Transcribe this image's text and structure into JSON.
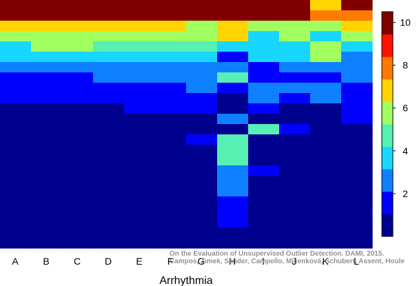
{
  "chart_data": {
    "type": "heatmap",
    "title": "",
    "xlabel": "Arrhythmia",
    "ylabel": "",
    "x_categories": [
      "A",
      "B",
      "C",
      "D",
      "E",
      "F",
      "G",
      "H",
      "I",
      "J",
      "K",
      "L"
    ],
    "rows": 24,
    "color_range": [
      0,
      10.5
    ],
    "colorbar_ticks": [
      2,
      4,
      6,
      8,
      10
    ],
    "colormap": [
      "#00008f",
      "#0000ff",
      "#0f80ff",
      "#17d7ff",
      "#55f0b2",
      "#a0ff5f",
      "#ffd400",
      "#ff7a00",
      "#ff1200",
      "#800000"
    ],
    "matrix": [
      [
        10.5,
        10.5,
        10.5,
        10.5,
        10.5,
        10.5,
        10.5,
        10.5,
        10.5,
        10.5,
        7.1,
        10.5
      ],
      [
        10.5,
        10.5,
        9.5,
        10.5,
        10.5,
        10.5,
        9.5,
        10.5,
        10.5,
        10.5,
        8.3,
        8.3
      ],
      [
        7.1,
        7.1,
        7.1,
        7.1,
        7.1,
        7.1,
        6.1,
        7.1,
        6.1,
        6.1,
        5.5,
        7.1
      ],
      [
        5.3,
        6.1,
        6.1,
        6.1,
        6.1,
        6.1,
        5.3,
        7.1,
        3.9,
        6.1,
        3.9,
        6.1
      ],
      [
        3.9,
        5.3,
        5.3,
        4.5,
        4.5,
        4.5,
        4.5,
        3.5,
        3.5,
        3.5,
        6.1,
        3.9
      ],
      [
        3.5,
        3.5,
        3.5,
        3.5,
        3.5,
        3.5,
        3.9,
        1.4,
        3.5,
        3.5,
        6.1,
        3.1
      ],
      [
        3.1,
        3.1,
        3.1,
        3.1,
        3.1,
        3.1,
        3.1,
        3.1,
        1.4,
        3.1,
        3.1,
        3.1
      ],
      [
        1.4,
        1.4,
        1.4,
        2.9,
        2.9,
        2.9,
        2.9,
        4.5,
        1.4,
        1.4,
        1.4,
        2.9
      ],
      [
        1.4,
        1.4,
        1.4,
        1.4,
        1.4,
        1.4,
        2.9,
        1.4,
        2.9,
        2.9,
        2.9,
        1.4
      ],
      [
        1.4,
        1.4,
        1.4,
        1.4,
        1.4,
        1.4,
        1.4,
        0.5,
        2.9,
        1.4,
        2.9,
        1.4
      ],
      [
        0.5,
        0.5,
        0.5,
        0.5,
        1.4,
        1.4,
        1.4,
        0.5,
        1.4,
        0.5,
        0.5,
        1.4
      ],
      [
        0.5,
        0.5,
        0.5,
        0.5,
        0.5,
        0.5,
        0.5,
        2.9,
        0.5,
        0.5,
        0.5,
        1.4
      ],
      [
        0.5,
        0.5,
        0.5,
        0.5,
        0.5,
        0.5,
        0.5,
        0.5,
        4.5,
        1.4,
        0.5,
        0.5
      ],
      [
        0.5,
        0.5,
        0.5,
        0.5,
        0.5,
        0.5,
        1.4,
        4.5,
        0.5,
        0.5,
        0.5,
        0.5
      ],
      [
        0.5,
        0.5,
        0.5,
        0.5,
        0.5,
        0.5,
        0.5,
        4.5,
        0.5,
        0.5,
        0.5,
        0.5
      ],
      [
        0.5,
        0.5,
        0.5,
        0.5,
        0.5,
        0.5,
        0.5,
        4.5,
        0.5,
        0.5,
        0.5,
        0.5
      ],
      [
        0.5,
        0.5,
        0.5,
        0.5,
        0.5,
        0.5,
        0.5,
        3.1,
        1.4,
        0.5,
        0.5,
        0.5
      ],
      [
        0.5,
        0.5,
        0.5,
        0.5,
        0.5,
        0.5,
        0.5,
        3.1,
        0.5,
        0.5,
        0.5,
        0.5
      ],
      [
        0.5,
        0.5,
        0.5,
        0.5,
        0.5,
        0.5,
        0.5,
        3.1,
        0.5,
        0.5,
        0.5,
        0.5
      ],
      [
        0.5,
        0.5,
        0.5,
        0.5,
        0.5,
        0.5,
        0.5,
        1.4,
        0.5,
        0.5,
        0.5,
        0.5
      ],
      [
        0.5,
        0.5,
        0.5,
        0.5,
        0.5,
        0.5,
        0.5,
        1.4,
        0.5,
        0.5,
        0.5,
        0.5
      ],
      [
        0.5,
        0.5,
        0.5,
        0.5,
        0.5,
        0.5,
        0.5,
        1.4,
        0.5,
        0.5,
        0.5,
        0.5
      ],
      [
        0.5,
        0.5,
        0.5,
        0.5,
        0.5,
        0.5,
        0.5,
        0.5,
        0.5,
        0.5,
        0.5,
        0.5
      ],
      [
        0.5,
        0.5,
        0.5,
        0.5,
        0.5,
        0.5,
        0.5,
        0.5,
        0.5,
        0.5,
        0.5,
        0.5
      ]
    ],
    "grid": false,
    "legend": "colorbar-right"
  },
  "watermark": {
    "line1": "On the Evaluation of Unsupervised Outlier Detection. DAMI, 2015.",
    "line2": "Campos, Zimek, Sander, Campello, Micenková, Schubert, Assent, Houle"
  }
}
